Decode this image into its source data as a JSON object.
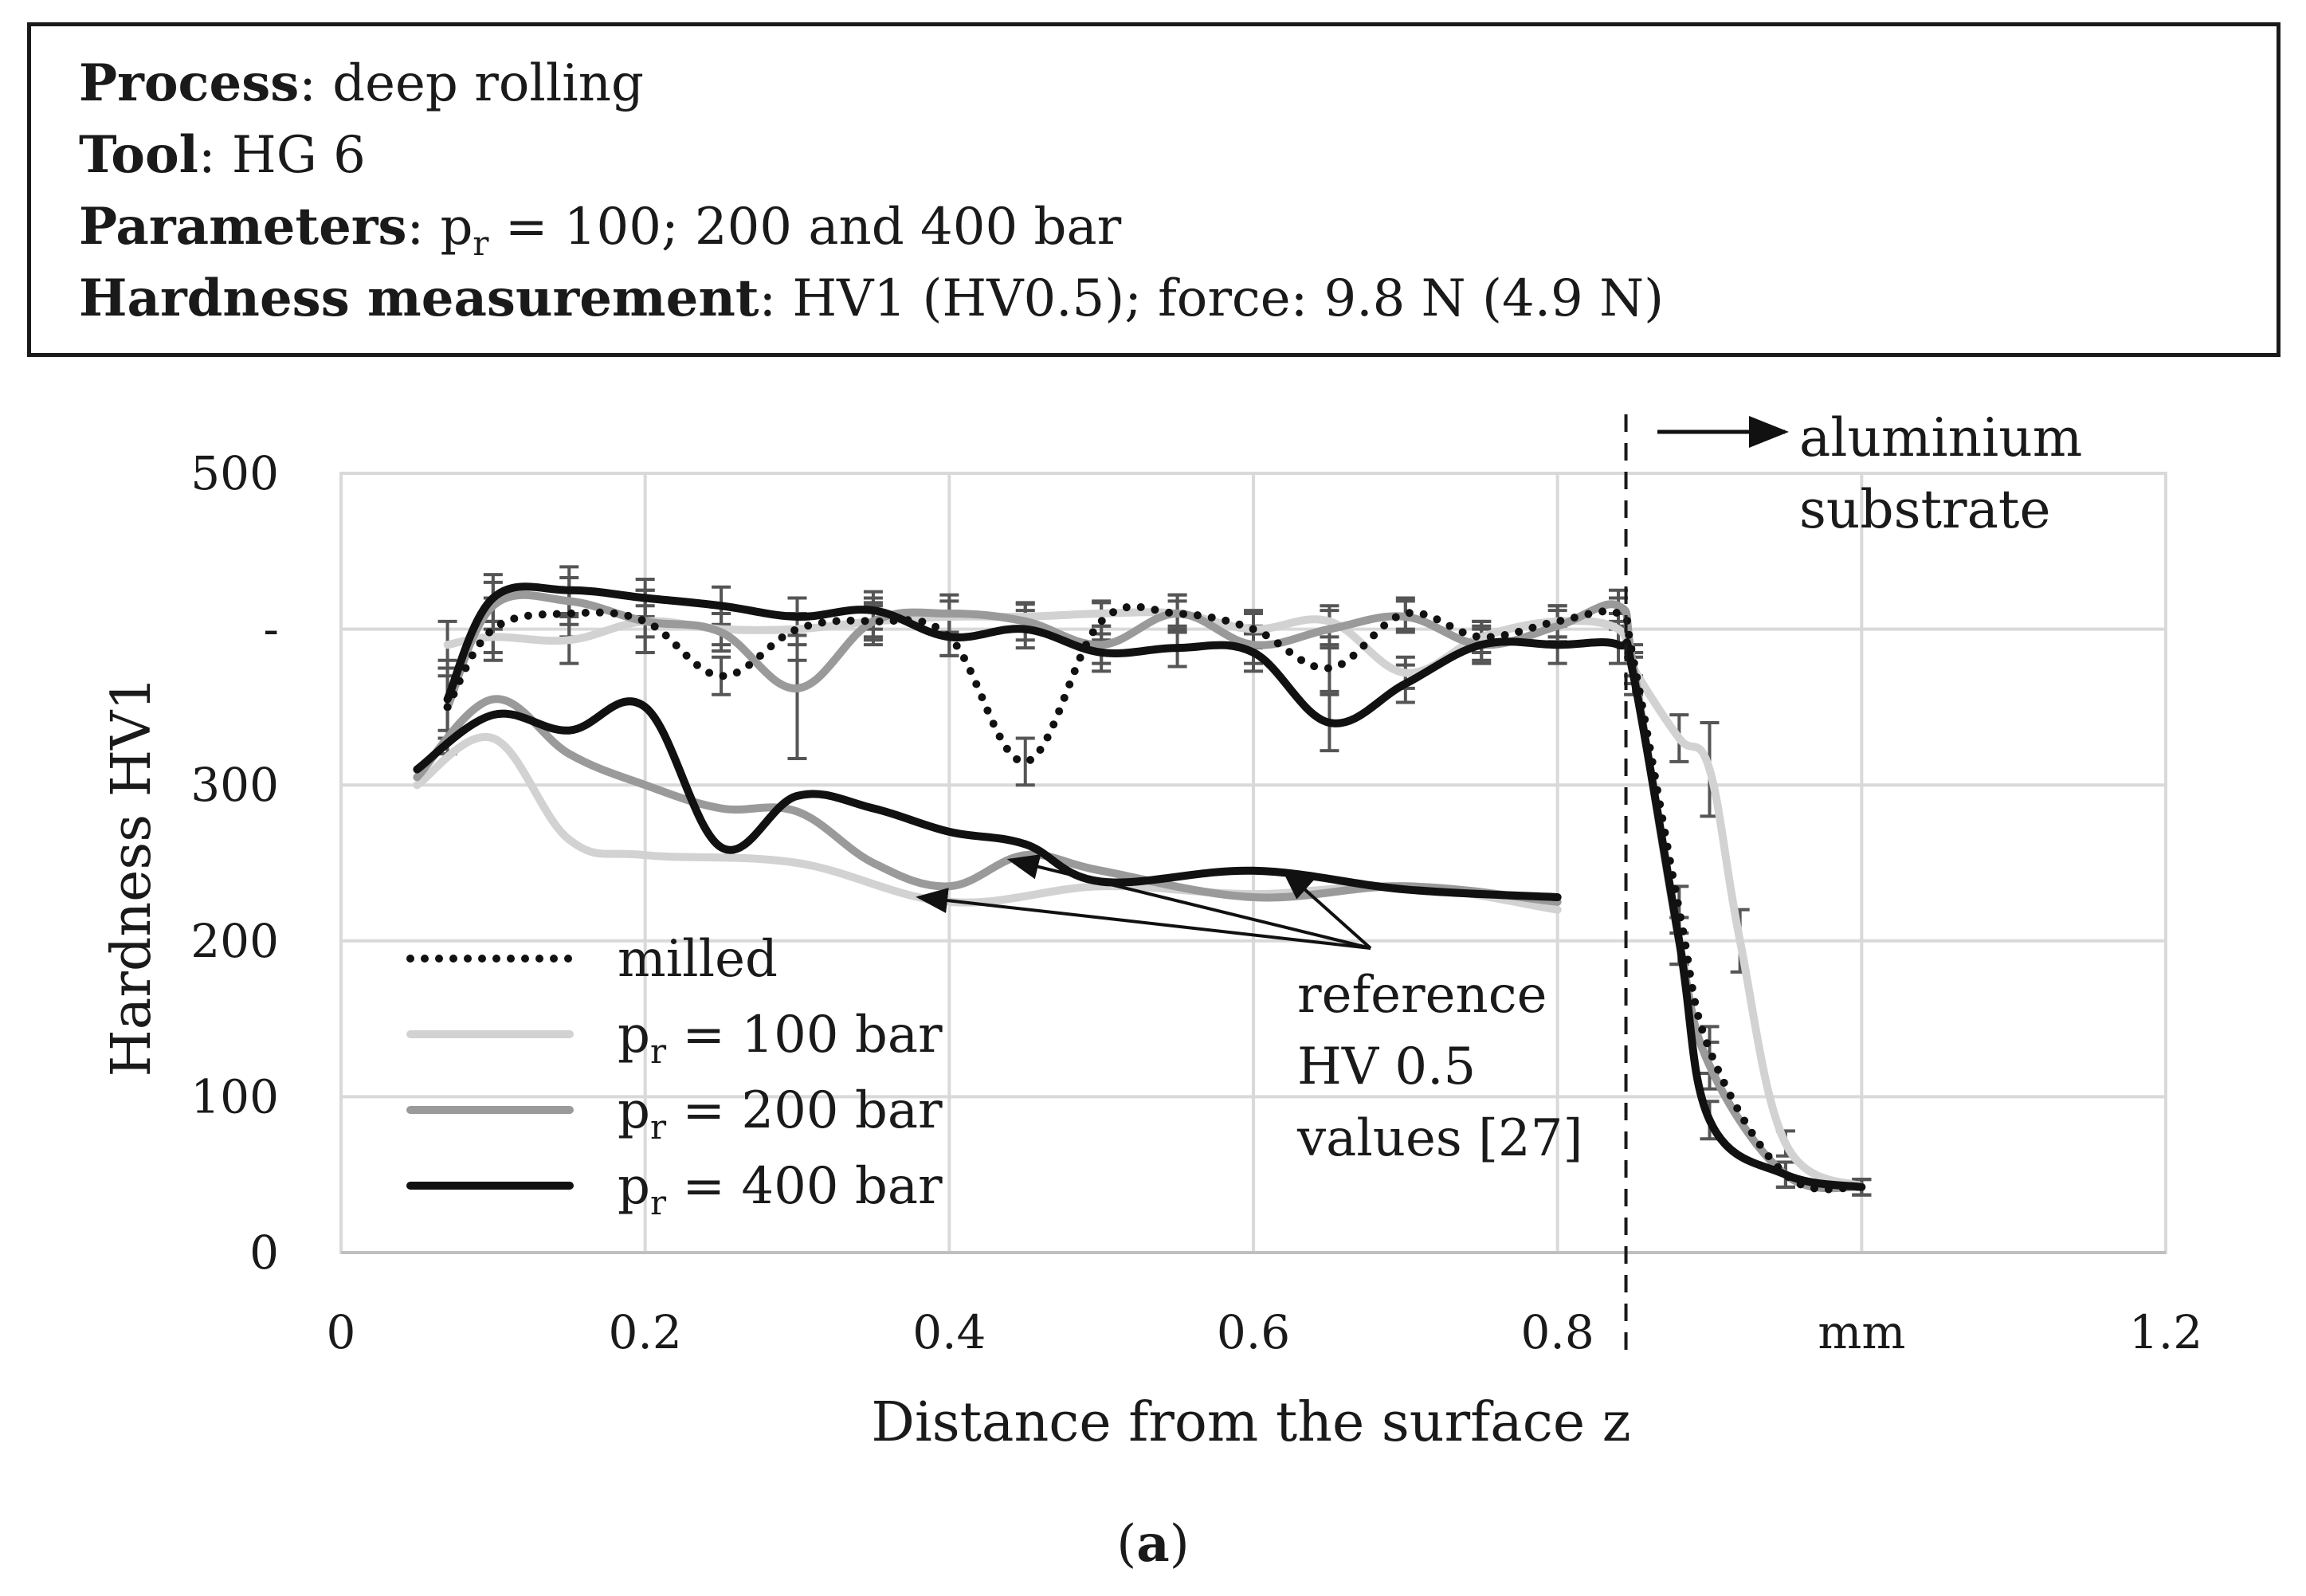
{
  "info": {
    "process_label": "Process",
    "process_value": ": deep rolling",
    "tool_label": "Tool",
    "tool_value": ": HG 6",
    "parameters_label": "Parameters",
    "parameters_p": ": p",
    "parameters_sub": "r",
    "parameters_rest": " = 100; 200 and 400 bar",
    "hardness_label": "Hardness measurement",
    "hardness_value": ": HV1 (HV0.5); force: 9.8 N (4.9 N)"
  },
  "caption": {
    "open": "(",
    "letter": "a",
    "close": ")"
  },
  "colors": {
    "milled": "#111111",
    "p100": "#d2d2d2",
    "p200": "#9a9a9a",
    "p400": "#111111",
    "grid": "#d9d9d9",
    "errorbar": "#555555"
  },
  "chart_data": {
    "type": "line",
    "xlabel": "Distance from the surface z",
    "ylabel": "Hardness  HV1",
    "xlim": [
      0,
      1.2
    ],
    "ylim": [
      0,
      500
    ],
    "xticks": [
      {
        "v": 0,
        "label": "0"
      },
      {
        "v": 0.2,
        "label": "0.2"
      },
      {
        "v": 0.4,
        "label": "0.4"
      },
      {
        "v": 0.6,
        "label": "0.6"
      },
      {
        "v": 0.8,
        "label": "0.8"
      },
      {
        "v": 1.0,
        "label": "mm"
      },
      {
        "v": 1.2,
        "label": "1.2"
      }
    ],
    "yticks": [
      {
        "v": 0,
        "label": "0"
      },
      {
        "v": 100,
        "label": "100"
      },
      {
        "v": 200,
        "label": "200"
      },
      {
        "v": 300,
        "label": "300"
      },
      {
        "v": 400,
        "label": "-"
      },
      {
        "v": 500,
        "label": "500"
      }
    ],
    "boundary_x": 0.845,
    "boundary_label_1": "aluminium",
    "boundary_label_2": "substrate",
    "reference_label_1": "reference",
    "reference_label_2": "HV 0.5",
    "reference_label_3": "values [27]",
    "series": [
      {
        "name": "milled",
        "key": "milled",
        "style": "dotted",
        "x": [
          0.07,
          0.1,
          0.15,
          0.2,
          0.25,
          0.3,
          0.35,
          0.4,
          0.45,
          0.5,
          0.55,
          0.6,
          0.65,
          0.7,
          0.75,
          0.8,
          0.84,
          0.85,
          0.88,
          0.9,
          0.95,
          1.0
        ],
        "y": [
          350,
          400,
          410,
          405,
          370,
          400,
          405,
          395,
          315,
          405,
          410,
          400,
          375,
          410,
          395,
          405,
          410,
          380,
          220,
          130,
          50,
          42
        ],
        "err": [
          30,
          20,
          15,
          20,
          12,
          20,
          12,
          12,
          15,
          12,
          12,
          12,
          15,
          10,
          10,
          10,
          10,
          10,
          15,
          15,
          8,
          5
        ]
      },
      {
        "name": "pᵣ = 100 bar",
        "key": "p100",
        "style": "solid",
        "x": [
          0.07,
          0.1,
          0.15,
          0.2,
          0.25,
          0.3,
          0.35,
          0.4,
          0.45,
          0.5,
          0.55,
          0.6,
          0.65,
          0.7,
          0.75,
          0.8,
          0.84,
          0.85,
          0.88,
          0.9,
          0.92,
          0.95,
          1.0
        ],
        "y": [
          390,
          395,
          393,
          405,
          400,
          400,
          405,
          408,
          408,
          410,
          410,
          400,
          405,
          372,
          395,
          405,
          400,
          375,
          330,
          310,
          200,
          70,
          42
        ],
        "err": [
          15,
          10,
          15,
          10,
          10,
          10,
          10,
          10,
          8,
          8,
          8,
          10,
          10,
          10,
          10,
          10,
          10,
          10,
          15,
          30,
          20,
          8,
          5
        ]
      },
      {
        "name": "pᵣ = 200 bar",
        "key": "p200",
        "style": "solid",
        "x": [
          0.07,
          0.1,
          0.15,
          0.2,
          0.25,
          0.3,
          0.35,
          0.4,
          0.45,
          0.5,
          0.55,
          0.6,
          0.65,
          0.7,
          0.75,
          0.8,
          0.84,
          0.85,
          0.88,
          0.9,
          0.95,
          1.0
        ],
        "y": [
          350,
          415,
          418,
          405,
          398,
          362,
          405,
          410,
          405,
          390,
          410,
          390,
          400,
          408,
          390,
          402,
          415,
          375,
          200,
          120,
          50,
          42
        ],
        "err": [
          20,
          15,
          15,
          20,
          12,
          45,
          15,
          12,
          12,
          12,
          12,
          12,
          12,
          10,
          10,
          10,
          10,
          10,
          15,
          15,
          8,
          5
        ]
      },
      {
        "name": "pᵣ = 400 bar",
        "key": "p400",
        "style": "solid",
        "x": [
          0.07,
          0.1,
          0.15,
          0.2,
          0.25,
          0.3,
          0.35,
          0.4,
          0.45,
          0.5,
          0.55,
          0.6,
          0.65,
          0.7,
          0.75,
          0.8,
          0.84,
          0.85,
          0.88,
          0.9,
          0.95,
          1.0
        ],
        "y": [
          355,
          420,
          425,
          420,
          415,
          408,
          412,
          395,
          400,
          385,
          388,
          385,
          340,
          365,
          390,
          390,
          390,
          370,
          200,
          85,
          50,
          42
        ],
        "err": [
          20,
          15,
          15,
          12,
          12,
          12,
          12,
          12,
          12,
          12,
          12,
          12,
          18,
          12,
          12,
          12,
          12,
          12,
          15,
          12,
          8,
          5
        ]
      },
      {
        "name": "ref 100",
        "key": "p100",
        "style": "solid",
        "reference": true,
        "x": [
          0.05,
          0.1,
          0.15,
          0.2,
          0.3,
          0.4,
          0.5,
          0.6,
          0.7,
          0.8
        ],
        "y": [
          300,
          330,
          265,
          255,
          250,
          225,
          235,
          230,
          235,
          220
        ]
      },
      {
        "name": "ref 200",
        "key": "p200",
        "style": "solid",
        "reference": true,
        "x": [
          0.05,
          0.1,
          0.15,
          0.2,
          0.25,
          0.3,
          0.35,
          0.4,
          0.45,
          0.5,
          0.6,
          0.7,
          0.8
        ],
        "y": [
          305,
          355,
          320,
          300,
          285,
          283,
          250,
          235,
          255,
          245,
          228,
          235,
          225
        ]
      },
      {
        "name": "ref 400",
        "key": "p400",
        "style": "solid",
        "reference": true,
        "x": [
          0.05,
          0.1,
          0.15,
          0.2,
          0.25,
          0.3,
          0.35,
          0.4,
          0.45,
          0.5,
          0.6,
          0.7,
          0.8
        ],
        "y": [
          310,
          345,
          335,
          350,
          260,
          293,
          285,
          270,
          262,
          238,
          245,
          233,
          228
        ]
      }
    ],
    "legend": [
      {
        "label": "milled",
        "key": "milled",
        "style": "dotted"
      },
      {
        "label_p": "p",
        "label_sub": "r",
        "label_rest": " = 100 bar",
        "key": "p100",
        "style": "solid"
      },
      {
        "label_p": "p",
        "label_sub": "r",
        "label_rest": " = 200 bar",
        "key": "p200",
        "style": "solid"
      },
      {
        "label_p": "p",
        "label_sub": "r",
        "label_rest": " = 400 bar",
        "key": "p400",
        "style": "solid"
      }
    ]
  }
}
